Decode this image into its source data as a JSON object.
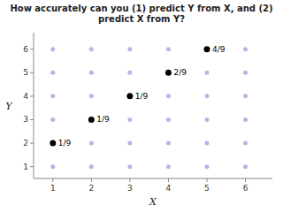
{
  "chart_data": {
    "type": "scatter",
    "title": "How accurately can you (1) predict Y from X, and (2) predict X from Y?",
    "x_label": "X",
    "y_label": "Y",
    "xlim": [
      0.5,
      6.7
    ],
    "ylim": [
      0.5,
      6.7
    ],
    "xticks": [
      1,
      2,
      3,
      4,
      5,
      6
    ],
    "yticks": [
      1,
      2,
      3,
      4,
      5,
      6
    ],
    "grid": false,
    "series": [
      {
        "color": "#b0b8e8",
        "marker": "circle",
        "x": [
          1,
          1,
          1,
          1,
          1,
          1,
          2,
          2,
          2,
          2,
          2,
          2,
          3,
          3,
          3,
          3,
          3,
          3,
          4,
          4,
          4,
          4,
          4,
          4,
          5,
          5,
          5,
          5,
          5,
          5,
          6,
          6,
          6,
          6,
          6,
          6
        ],
        "values": [
          1,
          2,
          3,
          4,
          5,
          6,
          1,
          2,
          3,
          4,
          5,
          6,
          1,
          2,
          3,
          4,
          5,
          6,
          1,
          2,
          3,
          4,
          5,
          6,
          1,
          2,
          3,
          4,
          5,
          6,
          1,
          2,
          3,
          4,
          5,
          6
        ]
      },
      {
        "color": "#000000",
        "marker": "circle",
        "x": [
          1,
          2,
          3,
          4,
          5
        ],
        "values": [
          2,
          3,
          4,
          5,
          6
        ]
      }
    ],
    "annotations": [
      {
        "text": "1/9",
        "x": 1,
        "y": 2
      },
      {
        "text": "1/9",
        "x": 2,
        "y": 3
      },
      {
        "text": "1/9",
        "x": 3,
        "y": 4
      },
      {
        "text": "2/9",
        "x": 4,
        "y": 5
      },
      {
        "text": "4/9",
        "x": 5,
        "y": 6
      }
    ]
  }
}
